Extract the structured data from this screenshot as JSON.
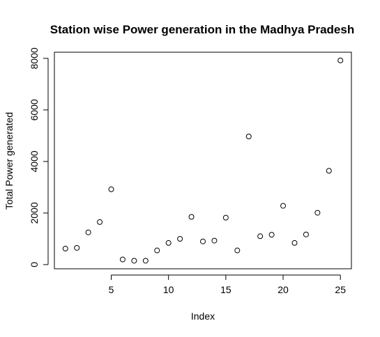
{
  "chart_data": {
    "type": "scatter",
    "title": "Station wise Power generation in the Madhya Pradesh",
    "xlabel": "Index",
    "ylabel": "Total Power generated",
    "x": [
      1,
      2,
      3,
      4,
      5,
      6,
      7,
      8,
      9,
      10,
      11,
      12,
      13,
      14,
      15,
      16,
      17,
      18,
      19,
      20,
      21,
      22,
      23,
      24,
      25
    ],
    "y": [
      620,
      650,
      1250,
      1650,
      2920,
      200,
      150,
      150,
      550,
      840,
      1000,
      1850,
      900,
      930,
      1820,
      550,
      4970,
      1100,
      1160,
      2280,
      840,
      1170,
      2010,
      3640,
      7920
    ],
    "xlim": [
      0.04,
      25.96
    ],
    "ylim": [
      -161.6,
      8237.6
    ],
    "xticks": [
      5,
      10,
      15,
      20,
      25
    ],
    "xtick_labels": [
      "5",
      "10",
      "15",
      "20",
      "25"
    ],
    "yticks": [
      0,
      2000,
      4000,
      6000,
      8000
    ],
    "ytick_labels": [
      "0",
      "2000",
      "4000",
      "6000",
      "8000"
    ],
    "grid": false,
    "marker": "open-circle"
  }
}
